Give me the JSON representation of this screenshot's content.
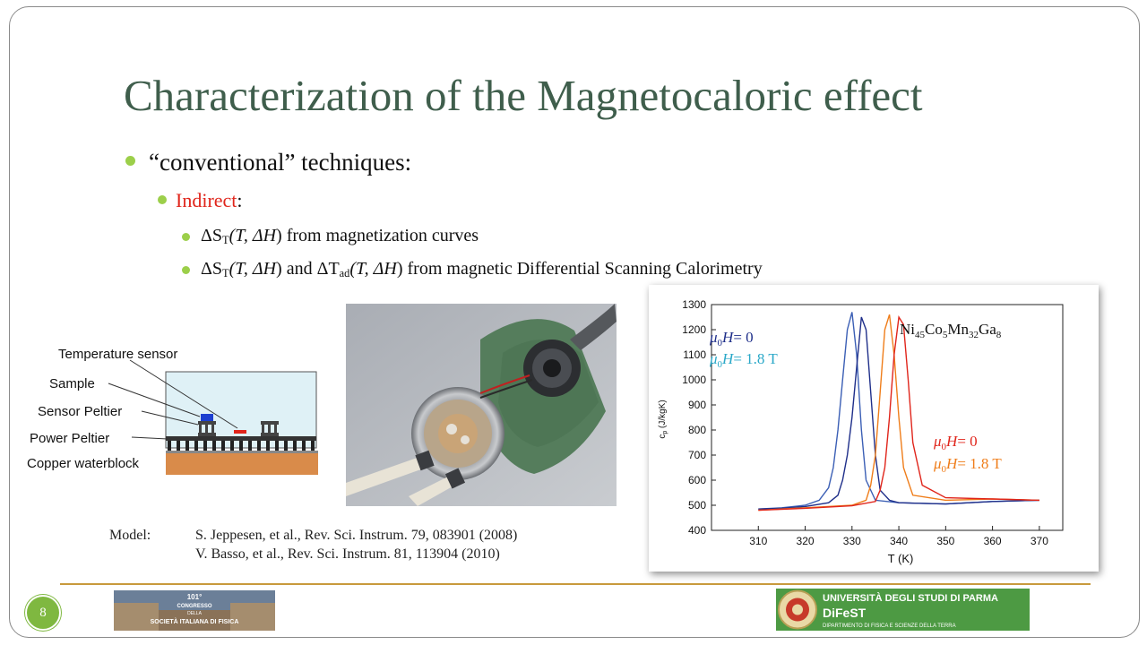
{
  "slide": {
    "title": "Characterization of the Magnetocaloric effect",
    "page_number": "8"
  },
  "bullets": {
    "b1": "“conventional” techniques:",
    "b2_red": "Indirect",
    "b2_rest": ":",
    "b3_suffix": ") from magnetization curves",
    "b4_mid": ") and ",
    "b4_suffix": ") from magnetic Differential Scanning Calorimetry",
    "sub_T": "T",
    "sub_ad": "ad",
    "delta_S": "ΔS",
    "delta_T": "ΔT",
    "args_open": "(T, ΔH",
    "args_open2": "(T, ΔH"
  },
  "diagram": {
    "labels": [
      "Temperature sensor",
      "Sample",
      "Sensor Peltier",
      "Power Peltier",
      "Copper waterblock"
    ]
  },
  "references": {
    "label": "Model:",
    "ref1": "S. Jeppesen, et al., Rev. Sci. Instrum. 79, 083901 (2008)",
    "ref2": "V. Basso, et al., Rev. Sci. Instrum. 81, 113904 (2010)"
  },
  "chart_data": {
    "type": "line",
    "xlabel": "T (K)",
    "ylabel": "c_p (J/kgK)",
    "xlim": [
      300,
      375
    ],
    "ylim": [
      400,
      1300
    ],
    "xticks": [
      310,
      320,
      330,
      340,
      350,
      360,
      370
    ],
    "yticks": [
      400,
      500,
      600,
      700,
      800,
      900,
      1000,
      1100,
      1200,
      1300
    ],
    "annotation": {
      "base": "Ni",
      "n1": "45",
      "e2": "Co",
      "n2": "5",
      "e3": "Mn",
      "n3": "32",
      "e4": "Ga",
      "n4": "8"
    },
    "legend_left": {
      "line1": "μ0H= 0",
      "line2": "μ0H= 1.8 T",
      "prefix": "μ",
      "sub": "0",
      "h": "H",
      "v1": "= 0",
      "v2": "= 1.8 T"
    },
    "legend_right": {
      "prefix": "μ",
      "sub": "0",
      "h": "H",
      "v1": "= 0",
      "v2": "= 1.8 T"
    },
    "series": [
      {
        "color": "#3b5fb5",
        "x": [
          310,
          315,
          320,
          323,
          325,
          326,
          327,
          328,
          329,
          330,
          331,
          332,
          333,
          335,
          340,
          350,
          360,
          370
        ],
        "y": [
          485,
          490,
          500,
          520,
          570,
          650,
          800,
          1000,
          1200,
          1270,
          1100,
          800,
          600,
          520,
          510,
          505,
          515,
          520
        ]
      },
      {
        "color": "#1f2f8a",
        "x": [
          310,
          315,
          320,
          325,
          327,
          328,
          329,
          330,
          331,
          332,
          333,
          334,
          335,
          336,
          338,
          340,
          350,
          360,
          370
        ],
        "y": [
          485,
          488,
          495,
          510,
          540,
          600,
          700,
          850,
          1050,
          1250,
          1200,
          950,
          700,
          560,
          520,
          510,
          505,
          515,
          520
        ]
      },
      {
        "color": "#ef7d1a",
        "x": [
          310,
          320,
          330,
          333,
          334,
          335,
          336,
          337,
          338,
          339,
          340,
          341,
          343,
          350,
          360,
          370
        ],
        "y": [
          480,
          490,
          500,
          520,
          580,
          700,
          950,
          1200,
          1260,
          1100,
          850,
          650,
          540,
          520,
          525,
          520
        ]
      },
      {
        "color": "#e0251b",
        "x": [
          310,
          320,
          330,
          335,
          336,
          337,
          338,
          339,
          340,
          341,
          342,
          343,
          345,
          350,
          360,
          370
        ],
        "y": [
          480,
          488,
          498,
          515,
          560,
          650,
          850,
          1100,
          1250,
          1220,
          1000,
          750,
          580,
          530,
          525,
          520
        ]
      }
    ],
    "colors": {
      "left_legend": "#1f2f8a",
      "left_legend_2": "#2aa8c8",
      "right_legend_1": "#e0251b",
      "right_legend_2": "#ef7d1a"
    }
  },
  "logos": {
    "left_lines": [
      "101°",
      "CONGRESSO",
      "DELLA",
      "SOCIETÀ ITALIANA DI FISICA"
    ],
    "right_title": "UNIVERSITÀ DEGLI STUDI DI PARMA",
    "right_sub": "DiFeST",
    "right_dept": "DIPARTIMENTO DI FISICA E SCIENZE DELLA TERRA"
  }
}
